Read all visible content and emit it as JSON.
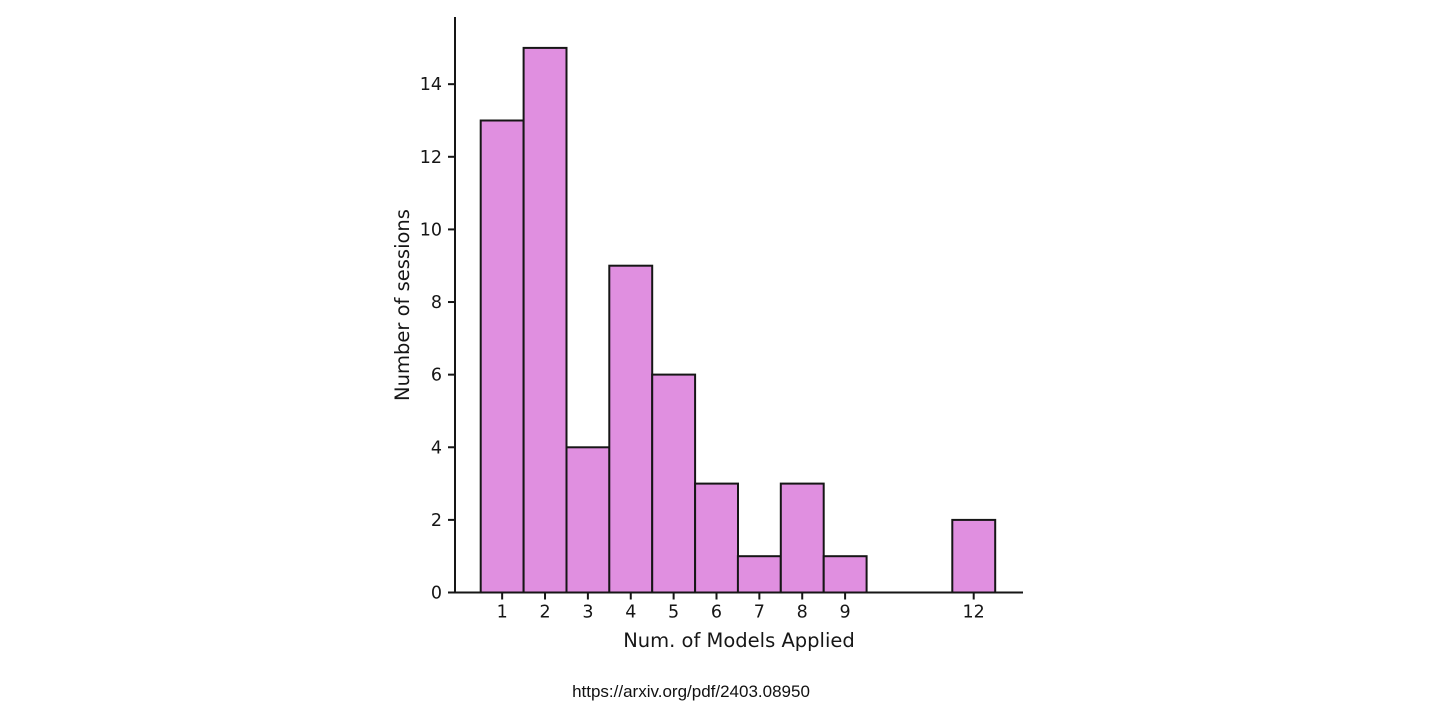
{
  "chart_data": {
    "type": "bar",
    "title": "",
    "xlabel": "Num. of Models Applied",
    "ylabel": "Number of sessions",
    "categories": [
      1,
      2,
      3,
      4,
      5,
      6,
      7,
      8,
      9,
      12
    ],
    "values": [
      13,
      15,
      4,
      9,
      6,
      3,
      1,
      3,
      1,
      2
    ],
    "x_ticks": [
      1,
      2,
      3,
      4,
      5,
      6,
      7,
      8,
      9,
      12
    ],
    "y_ticks": [
      0,
      2,
      4,
      6,
      8,
      10,
      12,
      14
    ],
    "xlim": [
      -0.1,
      13.15
    ],
    "ylim": [
      0,
      15.85
    ],
    "bar_width": 1,
    "bar_color": "#E08FE0",
    "bar_edge_color": "#161616",
    "axis_color": "#161616",
    "grid": false,
    "legend": null,
    "spines": [
      "left",
      "bottom"
    ]
  },
  "footer": {
    "url": "https://arxiv.org/pdf/2403.08950"
  }
}
